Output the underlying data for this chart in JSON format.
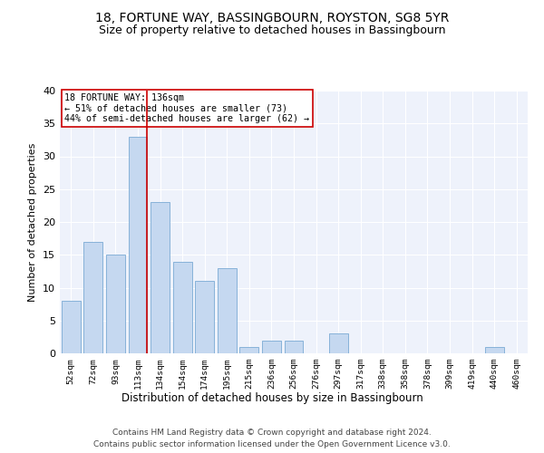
{
  "title1": "18, FORTUNE WAY, BASSINGBOURN, ROYSTON, SG8 5YR",
  "title2": "Size of property relative to detached houses in Bassingbourn",
  "xlabel": "Distribution of detached houses by size in Bassingbourn",
  "ylabel": "Number of detached properties",
  "categories": [
    "52sqm",
    "72sqm",
    "93sqm",
    "113sqm",
    "134sqm",
    "154sqm",
    "174sqm",
    "195sqm",
    "215sqm",
    "236sqm",
    "256sqm",
    "276sqm",
    "297sqm",
    "317sqm",
    "338sqm",
    "358sqm",
    "378sqm",
    "399sqm",
    "419sqm",
    "440sqm",
    "460sqm"
  ],
  "values": [
    8,
    17,
    15,
    33,
    23,
    14,
    11,
    13,
    1,
    2,
    2,
    0,
    3,
    0,
    0,
    0,
    0,
    0,
    0,
    1,
    0
  ],
  "bar_color": "#c5d8f0",
  "bar_edge_color": "#7aaad4",
  "annotation_line_color": "#cc0000",
  "annotation_line_idx": 3,
  "annotation_box_text": "18 FORTUNE WAY: 136sqm\n← 51% of detached houses are smaller (73)\n44% of semi-detached houses are larger (62) →",
  "annotation_box_color": "#cc0000",
  "ylim": [
    0,
    40
  ],
  "yticks": [
    0,
    5,
    10,
    15,
    20,
    25,
    30,
    35,
    40
  ],
  "footer1": "Contains HM Land Registry data © Crown copyright and database right 2024.",
  "footer2": "Contains public sector information licensed under the Open Government Licence v3.0.",
  "bg_color": "#ffffff",
  "plot_bg_color": "#eef2fb",
  "grid_color": "#ffffff",
  "title1_fontsize": 10,
  "title2_fontsize": 9
}
